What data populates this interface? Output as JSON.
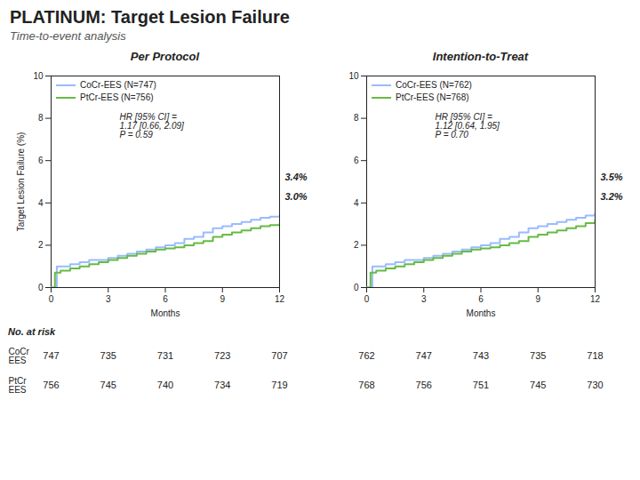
{
  "title": "PLATINUM: Target Lesion Failure",
  "subtitle": "Time-to-event analysis",
  "at_risk_label": "No. at risk",
  "at_risk_rows": [
    "CoCr\nEES",
    "PtCr\nEES"
  ],
  "chart_data": [
    {
      "type": "step",
      "title": "Per Protocol",
      "xlabel": "Months",
      "ylabel": "Target Lesion Failure (%)",
      "xlim": [
        0,
        12
      ],
      "ylim": [
        0,
        10
      ],
      "xticks": [
        0,
        3,
        6,
        9,
        12
      ],
      "yticks": [
        0,
        2,
        4,
        6,
        8,
        10
      ],
      "grid": false,
      "legend": "upper left",
      "annotation": "HR [95% CI] =\n1.17 [0.66, 2.09]\nP = 0.59",
      "series": [
        {
          "name": "CoCr-EES (N=747)",
          "color": "#99BBFF",
          "x": [
            0,
            0.3,
            0.5,
            1.0,
            1.5,
            2.0,
            2.5,
            3.0,
            3.5,
            4.0,
            4.5,
            5.0,
            5.5,
            6.0,
            6.5,
            7.0,
            7.5,
            8.0,
            8.5,
            9.0,
            9.5,
            10.0,
            10.5,
            11.0,
            11.5,
            12.0
          ],
          "values": [
            0,
            1.0,
            1.0,
            1.1,
            1.2,
            1.3,
            1.3,
            1.4,
            1.5,
            1.6,
            1.7,
            1.8,
            1.9,
            2.0,
            2.1,
            2.3,
            2.4,
            2.6,
            2.8,
            2.9,
            3.0,
            3.1,
            3.2,
            3.3,
            3.35,
            3.4
          ],
          "end_label": "3.4%",
          "at_risk": [
            747,
            735,
            731,
            723,
            707
          ]
        },
        {
          "name": "PtCr-EES (N=756)",
          "color": "#66BB44",
          "x": [
            0,
            0.2,
            0.5,
            1.0,
            1.5,
            2.0,
            2.5,
            3.0,
            3.5,
            4.0,
            4.5,
            5.0,
            5.5,
            6.0,
            6.5,
            7.0,
            7.5,
            8.0,
            8.5,
            9.0,
            9.5,
            10.0,
            10.5,
            11.0,
            11.5,
            12.0
          ],
          "values": [
            0,
            0.7,
            0.8,
            0.9,
            1.0,
            1.1,
            1.2,
            1.3,
            1.4,
            1.5,
            1.6,
            1.7,
            1.8,
            1.85,
            1.9,
            2.0,
            2.1,
            2.2,
            2.4,
            2.5,
            2.6,
            2.7,
            2.8,
            2.9,
            2.95,
            3.0
          ],
          "end_label": "3.0%",
          "at_risk": [
            756,
            745,
            740,
            734,
            719
          ]
        }
      ]
    },
    {
      "type": "step",
      "title": "Intention-to-Treat",
      "xlabel": "Months",
      "xlim": [
        0,
        12
      ],
      "ylim": [
        0,
        10
      ],
      "xticks": [
        0,
        3,
        6,
        9,
        12
      ],
      "yticks": [
        0,
        2,
        4,
        6,
        8,
        10
      ],
      "grid": false,
      "legend": "upper left",
      "annotation": "HR [95% CI] =\n1.12 [0.64, 1.95]\nP = 0.70",
      "series": [
        {
          "name": "CoCr-EES (N=762)",
          "color": "#99BBFF",
          "x": [
            0,
            0.3,
            0.5,
            1.0,
            1.5,
            2.0,
            2.5,
            3.0,
            3.5,
            4.0,
            4.5,
            5.0,
            5.5,
            6.0,
            6.5,
            7.0,
            7.5,
            8.0,
            8.5,
            9.0,
            9.5,
            10.0,
            10.5,
            11.0,
            11.5,
            12.0
          ],
          "values": [
            0,
            1.0,
            1.0,
            1.1,
            1.2,
            1.3,
            1.3,
            1.4,
            1.5,
            1.6,
            1.7,
            1.8,
            1.9,
            2.0,
            2.1,
            2.3,
            2.4,
            2.6,
            2.8,
            2.9,
            3.0,
            3.1,
            3.2,
            3.3,
            3.4,
            3.5
          ],
          "end_label": "3.5%",
          "at_risk": [
            762,
            747,
            743,
            735,
            718
          ]
        },
        {
          "name": "PtCr-EES (N=768)",
          "color": "#66BB44",
          "x": [
            0,
            0.2,
            0.5,
            1.0,
            1.5,
            2.0,
            2.5,
            3.0,
            3.5,
            4.0,
            4.5,
            5.0,
            5.5,
            6.0,
            6.5,
            7.0,
            7.5,
            8.0,
            8.5,
            9.0,
            9.5,
            10.0,
            10.5,
            11.0,
            11.5,
            12.0
          ],
          "values": [
            0,
            0.7,
            0.8,
            0.9,
            1.0,
            1.1,
            1.2,
            1.3,
            1.4,
            1.5,
            1.6,
            1.7,
            1.8,
            1.85,
            1.9,
            2.0,
            2.1,
            2.2,
            2.4,
            2.5,
            2.6,
            2.7,
            2.8,
            2.9,
            3.05,
            3.2
          ],
          "end_label": "3.2%",
          "at_risk": [
            768,
            756,
            751,
            745,
            730
          ]
        }
      ]
    }
  ]
}
